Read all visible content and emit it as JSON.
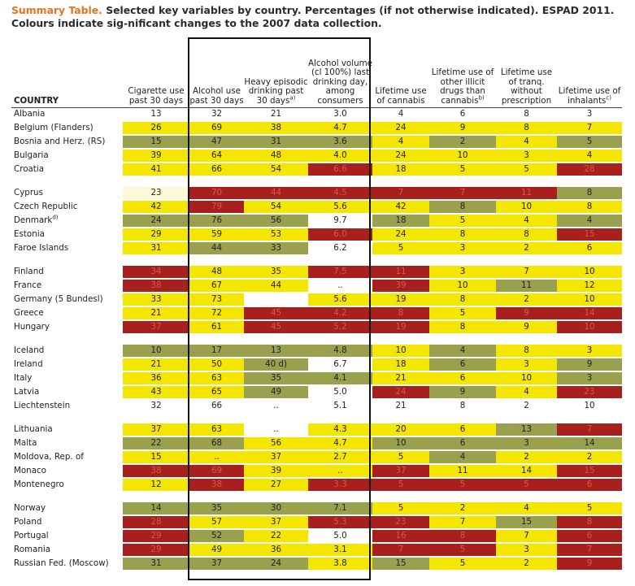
{
  "caption": {
    "lead": "Summary Table.",
    "text": " Selected key variables by country. Percentages (if not otherwise indicated). ESPAD 2011. Colours indicate sig-nificant changes to the 2007 data collection."
  },
  "columns": {
    "country": "COUNTRY",
    "cig": "Cigarette use past 30 days",
    "alc": "Alcohol use past 30 days",
    "heavy": "Heavy episodic drinking past 30 days",
    "heavy_sup": "a)",
    "vol": "Alcohol volume (cl 100%) last drinking day, among consumers",
    "cannabis": "Lifetime use of cannabis",
    "illicit": "Lifetime use of other illicit drugs than cannabis",
    "illicit_sup": "b)",
    "tranq": "Lifetime use of tranq. without prescription",
    "inhal": "Lifetime use of inhalants",
    "inhal_sup": "c)"
  },
  "rows": [
    {
      "country": "Albania",
      "c": [
        [
          "13",
          "w"
        ],
        [
          "32",
          "w"
        ],
        [
          "21",
          "w"
        ],
        [
          "3.0",
          "w"
        ],
        [
          "4",
          "w"
        ],
        [
          "6",
          "w"
        ],
        [
          "8",
          "w"
        ],
        [
          "3",
          "w"
        ]
      ]
    },
    {
      "country": "Belgium (Flanders)",
      "c": [
        [
          "26",
          "y"
        ],
        [
          "69",
          "y"
        ],
        [
          "38",
          "y"
        ],
        [
          "4.7",
          "y"
        ],
        [
          "24",
          "y"
        ],
        [
          "9",
          "y"
        ],
        [
          "8",
          "y"
        ],
        [
          "7",
          "y"
        ]
      ]
    },
    {
      "country": "Bosnia and Herz. (RS)",
      "c": [
        [
          "15",
          "g"
        ],
        [
          "47",
          "g"
        ],
        [
          "31",
          "g"
        ],
        [
          "3.6",
          "g"
        ],
        [
          "4",
          "y"
        ],
        [
          "2",
          "g"
        ],
        [
          "4",
          "y"
        ],
        [
          "5",
          "g"
        ]
      ]
    },
    {
      "country": "Bulgaria",
      "c": [
        [
          "39",
          "y"
        ],
        [
          "64",
          "y"
        ],
        [
          "48",
          "y"
        ],
        [
          "4.0",
          "y"
        ],
        [
          "24",
          "y"
        ],
        [
          "10",
          "y"
        ],
        [
          "3",
          "y"
        ],
        [
          "4",
          "y"
        ]
      ]
    },
    {
      "country": "Croatia",
      "c": [
        [
          "41",
          "y"
        ],
        [
          "66",
          "y"
        ],
        [
          "54",
          "y"
        ],
        [
          "6.6",
          "r"
        ],
        [
          "18",
          "y"
        ],
        [
          "5",
          "y"
        ],
        [
          "5",
          "y"
        ],
        [
          "28",
          "r"
        ]
      ]
    },
    {
      "gap": true
    },
    {
      "country": "Cyprus",
      "c": [
        [
          "23",
          "p"
        ],
        [
          "70",
          "r"
        ],
        [
          "44",
          "r"
        ],
        [
          "4.5",
          "r"
        ],
        [
          "7",
          "r"
        ],
        [
          "7",
          "r"
        ],
        [
          "11",
          "r"
        ],
        [
          "8",
          "g"
        ]
      ]
    },
    {
      "country": "Czech Republic",
      "c": [
        [
          "42",
          "y"
        ],
        [
          "79",
          "r"
        ],
        [
          "54",
          "y"
        ],
        [
          "5.6",
          "y"
        ],
        [
          "42",
          "y"
        ],
        [
          "8",
          "g"
        ],
        [
          "10",
          "y"
        ],
        [
          "8",
          "y"
        ]
      ]
    },
    {
      "country": "Denmark",
      "sup": "d)",
      "c": [
        [
          "24",
          "g"
        ],
        [
          "76",
          "g"
        ],
        [
          "56",
          "g"
        ],
        [
          "9.7",
          "w"
        ],
        [
          "18",
          "g"
        ],
        [
          "5",
          "y"
        ],
        [
          "4",
          "y"
        ],
        [
          "4",
          "g"
        ]
      ]
    },
    {
      "country": "Estonia",
      "c": [
        [
          "29",
          "y"
        ],
        [
          "59",
          "y"
        ],
        [
          "53",
          "y"
        ],
        [
          "6.0",
          "r"
        ],
        [
          "24",
          "y"
        ],
        [
          "8",
          "y"
        ],
        [
          "8",
          "y"
        ],
        [
          "15",
          "r"
        ]
      ]
    },
    {
      "country": "Faroe Islands",
      "c": [
        [
          "31",
          "y"
        ],
        [
          "44",
          "g"
        ],
        [
          "33",
          "g"
        ],
        [
          "6.2",
          "w"
        ],
        [
          "5",
          "y"
        ],
        [
          "3",
          "y"
        ],
        [
          "2",
          "y"
        ],
        [
          "6",
          "y"
        ]
      ]
    },
    {
      "gap": true
    },
    {
      "country": "Finland",
      "c": [
        [
          "34",
          "r"
        ],
        [
          "48",
          "y"
        ],
        [
          "35",
          "y"
        ],
        [
          "7.5",
          "r"
        ],
        [
          "11",
          "r"
        ],
        [
          "3",
          "y"
        ],
        [
          "7",
          "y"
        ],
        [
          "10",
          "y"
        ]
      ]
    },
    {
      "country": "France",
      "c": [
        [
          "38",
          "r"
        ],
        [
          "67",
          "y"
        ],
        [
          "44",
          "y"
        ],
        [
          "..",
          "w"
        ],
        [
          "39",
          "r"
        ],
        [
          "10",
          "y"
        ],
        [
          "11",
          "g"
        ],
        [
          "12",
          "y"
        ]
      ]
    },
    {
      "country": "Germany (5 Bundesl)",
      "c": [
        [
          "33",
          "y"
        ],
        [
          "73",
          "y"
        ],
        [
          "",
          "w"
        ],
        [
          "5.6",
          "y"
        ],
        [
          "19",
          "y"
        ],
        [
          "8",
          "y"
        ],
        [
          "2",
          "y"
        ],
        [
          "10",
          "y"
        ]
      ]
    },
    {
      "country": "Greece",
      "c": [
        [
          "21",
          "y"
        ],
        [
          "72",
          "y"
        ],
        [
          "45",
          "r"
        ],
        [
          "4.2",
          "r"
        ],
        [
          "8",
          "r"
        ],
        [
          "5",
          "y"
        ],
        [
          "9",
          "r"
        ],
        [
          "14",
          "r"
        ]
      ]
    },
    {
      "country": "Hungary",
      "c": [
        [
          "37",
          "r"
        ],
        [
          "61",
          "y"
        ],
        [
          "45",
          "r"
        ],
        [
          "5.2",
          "r"
        ],
        [
          "19",
          "r"
        ],
        [
          "8",
          "y"
        ],
        [
          "9",
          "y"
        ],
        [
          "10",
          "r"
        ]
      ]
    },
    {
      "gap": true
    },
    {
      "country": "Iceland",
      "c": [
        [
          "10",
          "g"
        ],
        [
          "17",
          "g"
        ],
        [
          "13",
          "g"
        ],
        [
          "4.8",
          "g"
        ],
        [
          "10",
          "y"
        ],
        [
          "4",
          "g"
        ],
        [
          "8",
          "y"
        ],
        [
          "3",
          "y"
        ]
      ]
    },
    {
      "country": "Ireland",
      "c": [
        [
          "21",
          "y"
        ],
        [
          "50",
          "y"
        ],
        [
          "40 d)",
          "g"
        ],
        [
          "6.7",
          "w"
        ],
        [
          "18",
          "y"
        ],
        [
          "6",
          "g"
        ],
        [
          "3",
          "y"
        ],
        [
          "9",
          "g"
        ]
      ]
    },
    {
      "country": "Italy",
      "c": [
        [
          "36",
          "y"
        ],
        [
          "63",
          "y"
        ],
        [
          "35",
          "g"
        ],
        [
          "4.1",
          "g"
        ],
        [
          "21",
          "y"
        ],
        [
          "6",
          "y"
        ],
        [
          "10",
          "y"
        ],
        [
          "3",
          "g"
        ]
      ]
    },
    {
      "country": "Latvia",
      "c": [
        [
          "43",
          "y"
        ],
        [
          "65",
          "y"
        ],
        [
          "49",
          "g"
        ],
        [
          "5.0",
          "w"
        ],
        [
          "24",
          "r"
        ],
        [
          "9",
          "g"
        ],
        [
          "4",
          "y"
        ],
        [
          "23",
          "r"
        ]
      ]
    },
    {
      "country": "Liechtenstein",
      "c": [
        [
          "32",
          "w"
        ],
        [
          "66",
          "w"
        ],
        [
          "..",
          "w"
        ],
        [
          "5.1",
          "w"
        ],
        [
          "21",
          "w"
        ],
        [
          "8",
          "w"
        ],
        [
          "2",
          "w"
        ],
        [
          "10",
          "w"
        ]
      ]
    },
    {
      "gap": true
    },
    {
      "country": "Lithuania",
      "c": [
        [
          "37",
          "y"
        ],
        [
          "63",
          "y"
        ],
        [
          "..",
          "w"
        ],
        [
          "4.3",
          "y"
        ],
        [
          "20",
          "y"
        ],
        [
          "6",
          "y"
        ],
        [
          "13",
          "g"
        ],
        [
          "7",
          "r"
        ]
      ]
    },
    {
      "country": "Malta",
      "c": [
        [
          "22",
          "g"
        ],
        [
          "68",
          "g"
        ],
        [
          "56",
          "y"
        ],
        [
          "4.7",
          "y"
        ],
        [
          "10",
          "g"
        ],
        [
          "6",
          "g"
        ],
        [
          "3",
          "g"
        ],
        [
          "14",
          "g"
        ]
      ]
    },
    {
      "country": "Moldova, Rep. of",
      "c": [
        [
          "15",
          "y"
        ],
        [
          "..",
          "y"
        ],
        [
          "37",
          "y"
        ],
        [
          "2.7",
          "y"
        ],
        [
          "5",
          "y"
        ],
        [
          "4",
          "g"
        ],
        [
          "2",
          "y"
        ],
        [
          "2",
          "y"
        ]
      ]
    },
    {
      "country": "Monaco",
      "c": [
        [
          "38",
          "r"
        ],
        [
          "69",
          "r"
        ],
        [
          "39",
          "y"
        ],
        [
          "..",
          "y"
        ],
        [
          "37",
          "r"
        ],
        [
          "11",
          "y"
        ],
        [
          "14",
          "y"
        ],
        [
          "15",
          "r"
        ]
      ]
    },
    {
      "country": "Montenegro",
      "c": [
        [
          "12",
          "y"
        ],
        [
          "38",
          "r"
        ],
        [
          "27",
          "y"
        ],
        [
          "3.3",
          "r"
        ],
        [
          "5",
          "r"
        ],
        [
          "5",
          "r"
        ],
        [
          "5",
          "r"
        ],
        [
          "6",
          "r"
        ]
      ]
    },
    {
      "gap": true
    },
    {
      "country": "Norway",
      "c": [
        [
          "14",
          "g"
        ],
        [
          "35",
          "g"
        ],
        [
          "30",
          "g"
        ],
        [
          "7.1",
          "g"
        ],
        [
          "5",
          "y"
        ],
        [
          "2",
          "y"
        ],
        [
          "4",
          "y"
        ],
        [
          "5",
          "y"
        ]
      ]
    },
    {
      "country": "Poland",
      "c": [
        [
          "28",
          "r"
        ],
        [
          "57",
          "y"
        ],
        [
          "37",
          "y"
        ],
        [
          "5.3",
          "r"
        ],
        [
          "23",
          "r"
        ],
        [
          "7",
          "y"
        ],
        [
          "15",
          "g"
        ],
        [
          "8",
          "r"
        ]
      ]
    },
    {
      "country": "Portugal",
      "c": [
        [
          "29",
          "r"
        ],
        [
          "52",
          "g"
        ],
        [
          "22",
          "y"
        ],
        [
          "5.0",
          "w"
        ],
        [
          "16",
          "r"
        ],
        [
          "8",
          "r"
        ],
        [
          "7",
          "y"
        ],
        [
          "6",
          "r"
        ]
      ]
    },
    {
      "country": "Romania",
      "c": [
        [
          "29",
          "r"
        ],
        [
          "49",
          "y"
        ],
        [
          "36",
          "y"
        ],
        [
          "3.1",
          "y"
        ],
        [
          "7",
          "r"
        ],
        [
          "5",
          "r"
        ],
        [
          "3",
          "y"
        ],
        [
          "7",
          "r"
        ]
      ]
    },
    {
      "country": "Russian Fed. (Moscow)",
      "c": [
        [
          "31",
          "g"
        ],
        [
          "37",
          "g"
        ],
        [
          "24",
          "g"
        ],
        [
          "3.8",
          "y"
        ],
        [
          "15",
          "g"
        ],
        [
          "5",
          "y"
        ],
        [
          "2",
          "y"
        ],
        [
          "9",
          "r"
        ]
      ]
    }
  ]
}
